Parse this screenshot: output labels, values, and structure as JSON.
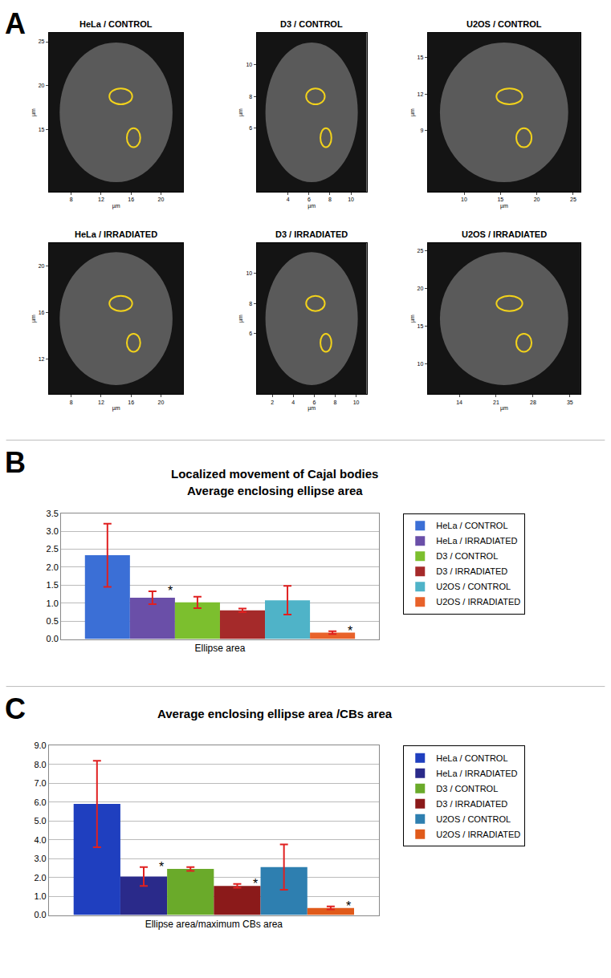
{
  "chart_data": [
    {
      "type": "image",
      "panel": "A",
      "title": "HeLa / CONTROL",
      "xlabel": "µm",
      "ylabel": "µm",
      "xlim": [
        5,
        23
      ],
      "ylim": [
        8,
        26
      ],
      "xticks": [
        8,
        12,
        16,
        20
      ],
      "yticks": [
        15,
        20,
        25
      ],
      "grid": false
    },
    {
      "type": "image",
      "title": "D3 / CONTROL",
      "xlabel": "µm",
      "ylabel": "µm",
      "xlim": [
        1,
        11.5
      ],
      "ylim": [
        2,
        12
      ],
      "xticks": [
        4,
        6,
        8,
        10
      ],
      "yticks": [
        6,
        8,
        10
      ],
      "grid": false
    },
    {
      "type": "image",
      "title": "U2OS / CONTROL",
      "xlabel": "µm",
      "ylabel": "µm",
      "xlim": [
        5,
        26
      ],
      "ylim": [
        4,
        17
      ],
      "xticks": [
        10,
        15,
        20,
        25
      ],
      "yticks": [
        9,
        12,
        15
      ],
      "grid": false
    },
    {
      "type": "image",
      "title": "HeLa / IRRADIATED",
      "xlabel": "µm",
      "ylabel": "µm",
      "xlim": [
        5,
        23
      ],
      "ylim": [
        9,
        22
      ],
      "xticks": [
        8,
        12,
        16,
        20
      ],
      "yticks": [
        12,
        16,
        20
      ],
      "grid": false
    },
    {
      "type": "image",
      "title": "D3 / IRRADIATED",
      "xlabel": "µm",
      "ylabel": "µm",
      "xlim": [
        0.5,
        11
      ],
      "ylim": [
        2,
        12
      ],
      "xticks": [
        2,
        4,
        6,
        8,
        10
      ],
      "yticks": [
        6,
        8,
        10
      ],
      "grid": false
    },
    {
      "type": "image",
      "title": "U2OS / IRRADIATED",
      "xlabel": "µm",
      "ylabel": "µm",
      "xlim": [
        8,
        37
      ],
      "ylim": [
        6,
        26
      ],
      "xticks": [
        14,
        21,
        28,
        35
      ],
      "yticks": [
        10,
        15,
        20,
        25
      ],
      "grid": false
    },
    {
      "type": "bar",
      "panel": "B",
      "title": "Localized movement of Cajal bodies",
      "subtitle": "Average enclosing ellipse area",
      "categories": [
        "Ellipse area"
      ],
      "ylim": [
        0,
        3.5
      ],
      "yticks": [
        {
          "value": 0,
          "label": "0.0"
        },
        0.5,
        {
          "value": 1,
          "label": "1.0"
        },
        1.5,
        {
          "value": 2,
          "label": "2.0"
        },
        2.5,
        {
          "value": 3,
          "label": "3.0"
        },
        3.5
      ],
      "grid": true,
      "legend": "right",
      "series": [
        {
          "name": "HeLa / CONTROL",
          "color": "#3b6fd6",
          "values": [
            2.33
          ],
          "error": [
            0.88
          ]
        },
        {
          "name": "HeLa / IRRADIATED",
          "color": "#6a4fa8",
          "values": [
            1.15
          ],
          "error": [
            0.18
          ],
          "significance": "*"
        },
        {
          "name": "D3 / CONTROL",
          "color": "#7cbf2e",
          "values": [
            1.02
          ],
          "error": [
            0.16
          ]
        },
        {
          "name": "D3 / IRRADIATED",
          "color": "#a52a2a",
          "values": [
            0.8
          ],
          "error": [
            0.05
          ]
        },
        {
          "name": "U2OS / CONTROL",
          "color": "#4fb3c8",
          "values": [
            1.08
          ],
          "error": [
            0.4
          ]
        },
        {
          "name": "U2OS / IRRADIATED",
          "color": "#e8622a",
          "values": [
            0.18
          ],
          "error": [
            0.04
          ],
          "significance": "*"
        }
      ]
    },
    {
      "type": "bar",
      "panel": "C",
      "title": "Average enclosing ellipse area /CBs area",
      "categories": [
        "Ellipse area/maximum CBs area"
      ],
      "ylim": [
        0,
        9
      ],
      "yticks": [
        {
          "value": 0,
          "label": "0.0"
        },
        {
          "value": 1,
          "label": "1.0"
        },
        {
          "value": 2,
          "label": "2.0"
        },
        {
          "value": 3,
          "label": "3.0"
        },
        {
          "value": 4,
          "label": "4.0"
        },
        {
          "value": 5,
          "label": "5.0"
        },
        {
          "value": 6,
          "label": "6.0"
        },
        {
          "value": 7,
          "label": "7.0"
        },
        {
          "value": 8,
          "label": "8.0"
        },
        {
          "value": 9,
          "label": "9.0"
        }
      ],
      "grid": true,
      "legend": "right",
      "series": [
        {
          "name": "HeLa / CONTROL",
          "color": "#1f3fbf",
          "values": [
            5.9
          ],
          "error": [
            2.3
          ]
        },
        {
          "name": "HeLa / IRRADIATED",
          "color": "#2a2a8a",
          "values": [
            2.05
          ],
          "error": [
            0.5
          ],
          "significance": "*"
        },
        {
          "name": "D3 / CONTROL",
          "color": "#6aaa2a",
          "values": [
            2.45
          ],
          "error": [
            0.1
          ]
        },
        {
          "name": "D3 / IRRADIATED",
          "color": "#8b1a1a",
          "values": [
            1.55
          ],
          "error": [
            0.1
          ],
          "significance": "*"
        },
        {
          "name": "U2OS / CONTROL",
          "color": "#2e7fb0",
          "values": [
            2.55
          ],
          "error": [
            1.2
          ]
        },
        {
          "name": "U2OS / IRRADIATED",
          "color": "#e05a1a",
          "values": [
            0.38
          ],
          "error": [
            0.08
          ],
          "significance": "*"
        }
      ]
    }
  ]
}
